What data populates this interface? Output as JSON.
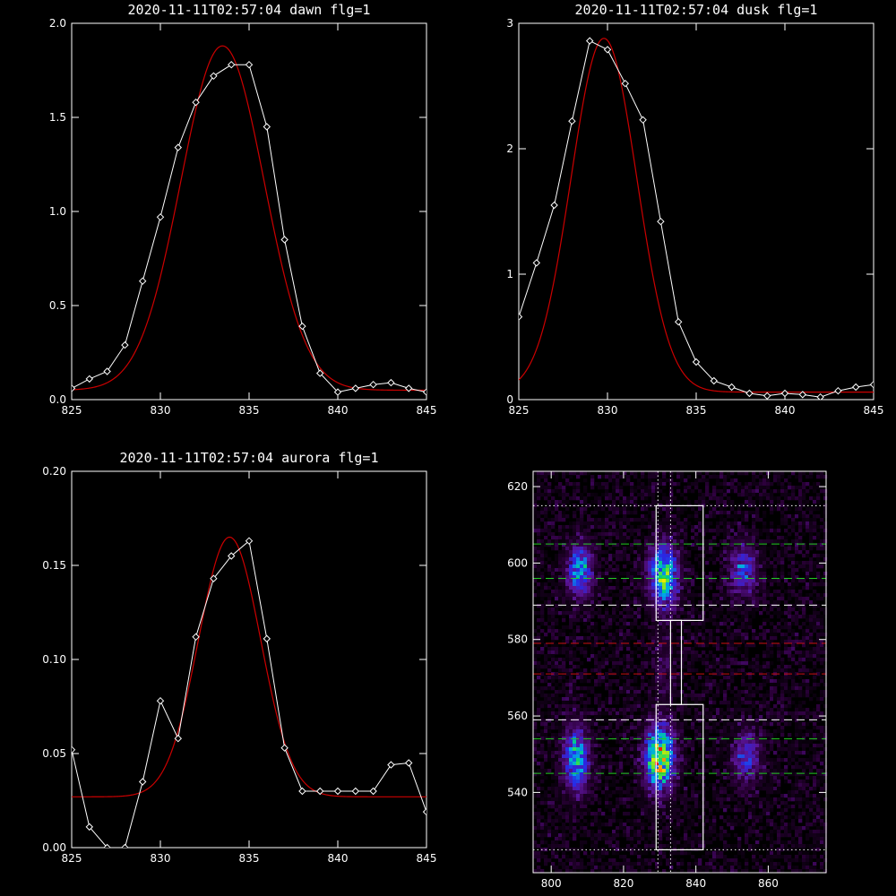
{
  "chart_data": [
    {
      "type": "line",
      "title": "2020-11-11T02:57:04 dawn flg=1",
      "xlim": [
        825,
        845
      ],
      "ylim": [
        0,
        2.0
      ],
      "x_ticks": [
        "825",
        "830",
        "835",
        "840",
        "845"
      ],
      "y_ticks": [
        "0.0",
        "0.5",
        "1.0",
        "1.5",
        "2.0"
      ],
      "grid": false,
      "series": [
        {
          "role": "measured",
          "color": "#ffffff",
          "marker": "diamond",
          "x": [
            825,
            826,
            827,
            828,
            829,
            830,
            831,
            832,
            833,
            834,
            835,
            836,
            837,
            838,
            839,
            840,
            841,
            842,
            843,
            844,
            845
          ],
          "y": [
            0.06,
            0.11,
            0.15,
            0.29,
            0.63,
            0.97,
            1.34,
            1.58,
            1.72,
            1.78,
            1.78,
            1.45,
            0.85,
            0.39,
            0.14,
            0.04,
            0.06,
            0.08,
            0.09,
            0.06,
            0.04
          ]
        },
        {
          "role": "fit",
          "color": "#cc0000",
          "fit": {
            "amp": 1.83,
            "center": 833.5,
            "sigma": 2.35,
            "base": 0.05
          }
        }
      ]
    },
    {
      "type": "line",
      "title": "2020-11-11T02:57:04 dusk flg=1",
      "xlim": [
        825,
        845
      ],
      "ylim": [
        0,
        3
      ],
      "x_ticks": [
        "825",
        "830",
        "835",
        "840",
        "845"
      ],
      "y_ticks": [
        "0",
        "1",
        "2",
        "3"
      ],
      "grid": false,
      "series": [
        {
          "role": "measured",
          "color": "#ffffff",
          "marker": "diamond",
          "x": [
            825,
            826,
            827,
            828,
            829,
            830,
            831,
            832,
            833,
            834,
            835,
            836,
            837,
            838,
            839,
            840,
            841,
            842,
            843,
            844,
            845
          ],
          "y": [
            0.66,
            1.09,
            1.55,
            2.22,
            2.86,
            2.79,
            2.52,
            2.23,
            1.42,
            0.62,
            0.3,
            0.15,
            0.1,
            0.05,
            0.03,
            0.05,
            0.04,
            0.02,
            0.07,
            0.1,
            0.12
          ]
        },
        {
          "role": "fit",
          "color": "#cc0000",
          "fit": {
            "amp": 2.82,
            "center": 829.8,
            "sigma": 1.85,
            "base": 0.06
          }
        }
      ]
    },
    {
      "type": "line",
      "title": "2020-11-11T02:57:04 aurora flg=1",
      "xlim": [
        825,
        845
      ],
      "ylim": [
        0,
        0.2
      ],
      "x_ticks": [
        "825",
        "830",
        "835",
        "840",
        "845"
      ],
      "y_ticks": [
        "0.00",
        "0.05",
        "0.10",
        "0.15",
        "0.20"
      ],
      "grid": false,
      "series": [
        {
          "role": "measured",
          "color": "#ffffff",
          "marker": "diamond",
          "x": [
            825,
            826,
            827,
            828,
            829,
            830,
            831,
            832,
            833,
            834,
            835,
            836,
            837,
            838,
            839,
            840,
            841,
            842,
            843,
            844,
            845
          ],
          "y": [
            0.052,
            0.011,
            0.0,
            0.0,
            0.035,
            0.078,
            0.058,
            0.112,
            0.143,
            0.155,
            0.163,
            0.111,
            0.053,
            0.03,
            0.03,
            0.03,
            0.03,
            0.03,
            0.044,
            0.045,
            0.019
          ]
        },
        {
          "role": "fit",
          "color": "#cc0000",
          "fit": {
            "amp": 0.138,
            "center": 833.9,
            "sigma": 1.75,
            "base": 0.027
          }
        }
      ]
    },
    {
      "type": "heatmap",
      "title": "",
      "xlim": [
        795,
        876
      ],
      "ylim": [
        519,
        624
      ],
      "x_ticks": [
        "800",
        "820",
        "840",
        "860"
      ],
      "y_ticks": [
        "540",
        "560",
        "580",
        "600",
        "620"
      ],
      "colormap": "rainbow",
      "blobs": [
        {
          "x": 808,
          "y": 598,
          "sx": 2.3,
          "sy": 4.5,
          "peak": 0.55
        },
        {
          "x": 831,
          "y": 597,
          "sx": 2.6,
          "sy": 5.5,
          "peak": 0.72
        },
        {
          "x": 853,
          "y": 598,
          "sx": 2.5,
          "sy": 4.5,
          "peak": 0.4
        },
        {
          "x": 807,
          "y": 549,
          "sx": 2.3,
          "sy": 5.5,
          "peak": 0.6
        },
        {
          "x": 830,
          "y": 549,
          "sx": 2.6,
          "sy": 5.5,
          "peak": 0.95
        },
        {
          "x": 854,
          "y": 549,
          "sx": 2.5,
          "sy": 4.5,
          "peak": 0.35
        },
        {
          "x": 831,
          "y": 573,
          "sx": 2.0,
          "sy": 6.0,
          "peak": 0.12
        }
      ],
      "boxes": [
        {
          "x0": 829,
          "x1": 842,
          "y0": 585,
          "y1": 615
        },
        {
          "x0": 833,
          "x1": 836,
          "y0": 563,
          "y1": 585
        },
        {
          "x0": 829,
          "x1": 842,
          "y0": 525,
          "y1": 563
        }
      ],
      "vlines_dotted": [
        829.5,
        833
      ],
      "hlines": [
        {
          "y": 615,
          "color": "#ffffff",
          "style": "dotted"
        },
        {
          "y": 605,
          "color": "#22cc22",
          "style": "dashed"
        },
        {
          "y": 596,
          "color": "#22cc22",
          "style": "dashed"
        },
        {
          "y": 589,
          "color": "#ffffff",
          "style": "dashed"
        },
        {
          "y": 579,
          "color": "#cc1111",
          "style": "dashed"
        },
        {
          "y": 571,
          "color": "#cc1111",
          "style": "dashed"
        },
        {
          "y": 559,
          "color": "#ffffff",
          "style": "dashed"
        },
        {
          "y": 554,
          "color": "#22cc22",
          "style": "dashed"
        },
        {
          "y": 545,
          "color": "#22cc22",
          "style": "dashed"
        },
        {
          "y": 525,
          "color": "#ffffff",
          "style": "dotted"
        }
      ]
    }
  ]
}
